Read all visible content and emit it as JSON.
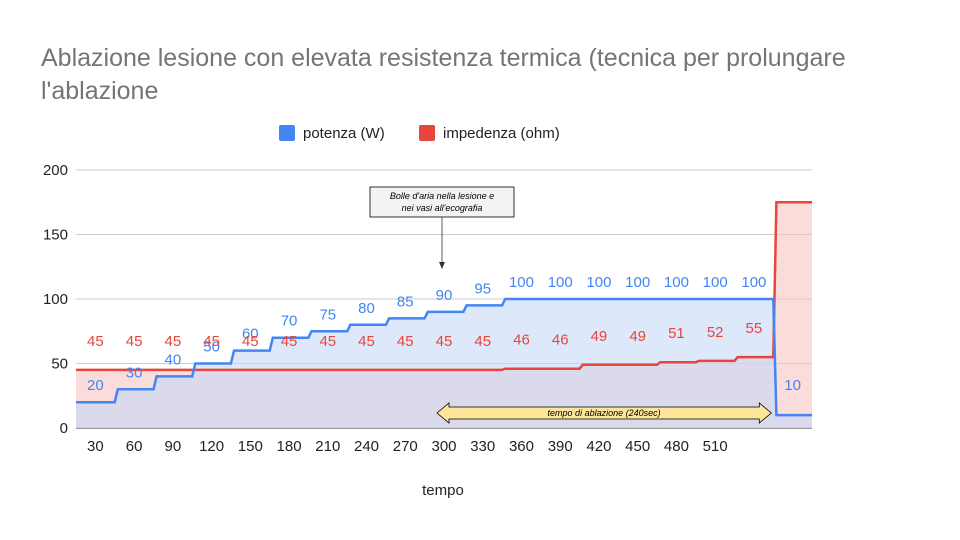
{
  "chart_data": {
    "type": "area",
    "title": "Ablazione lesione con elevata resistenza termica (tecnica per prolungare l'ablazione",
    "xlabel": "tempo",
    "ylabel": "",
    "ylim": [
      0,
      200
    ],
    "yticks": [
      "0",
      "50",
      "100",
      "150",
      "200"
    ],
    "categories": [
      "30",
      "60",
      "90",
      "120",
      "150",
      "180",
      "210",
      "240",
      "270",
      "300",
      "330",
      "360",
      "390",
      "420",
      "450",
      "480",
      "510",
      "",
      ""
    ],
    "x": [
      30,
      60,
      90,
      120,
      150,
      180,
      210,
      240,
      270,
      300,
      330,
      360,
      390,
      420,
      450,
      480,
      510,
      540,
      570
    ],
    "grid": true,
    "legend_position": "top",
    "series": [
      {
        "name": "potenza (W)",
        "color": "#4285f4",
        "fill": "#c6d9f8",
        "steps": [
          20,
          30,
          40,
          50,
          60,
          70,
          75,
          80,
          85,
          90,
          95,
          100,
          100,
          100,
          100,
          100,
          100,
          100,
          10
        ],
        "values": [
          20,
          30,
          40,
          50,
          60,
          70,
          75,
          80,
          85,
          90,
          95,
          100,
          100,
          100,
          100,
          100,
          100,
          100,
          10
        ],
        "labels": [
          "20",
          "30",
          "40",
          "50",
          "60",
          "70",
          "75",
          "80",
          "85",
          "90",
          "95",
          "100",
          "100",
          "100",
          "100",
          "100",
          "100",
          "100",
          "10"
        ]
      },
      {
        "name": "impedenza (ohm)",
        "color": "#e8453c",
        "fill": "#f6c5c2",
        "steps": [
          45,
          45,
          45,
          45,
          45,
          45,
          45,
          45,
          45,
          45,
          45,
          46,
          46,
          49,
          49,
          51,
          52,
          55,
          175
        ],
        "values": [
          45,
          45,
          45,
          45,
          45,
          45,
          45,
          45,
          45,
          45,
          45,
          46,
          46,
          49,
          49,
          51,
          52,
          55,
          175
        ],
        "labels": [
          "45",
          "45",
          "45",
          "45",
          "45",
          "45",
          "45",
          "45",
          "45",
          "45",
          "45",
          "46",
          "46",
          "49",
          "49",
          "51",
          "52",
          "55",
          ""
        ]
      }
    ],
    "annotations": [
      {
        "text": "Bolle d'aria nella lesione e nei vasi all'ecografia",
        "x": 300
      },
      {
        "text": "tempo di ablazione (240sec)",
        "x_start": 300,
        "x_end": 540
      }
    ]
  }
}
